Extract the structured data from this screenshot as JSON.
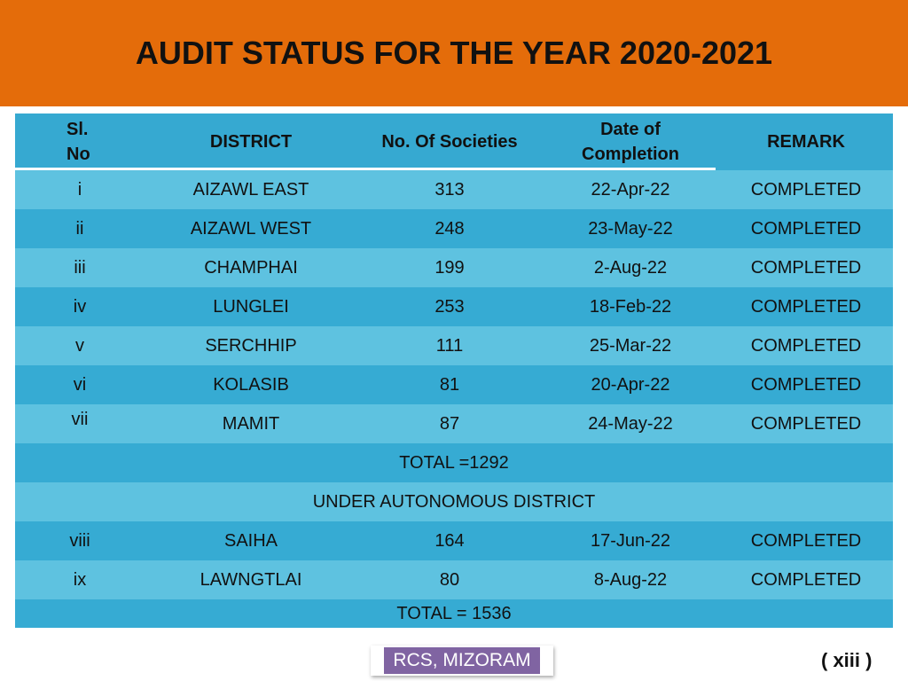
{
  "title": "AUDIT STATUS FOR THE YEAR 2020-2021",
  "colors": {
    "header_bg": "#e46c0a",
    "table_dark": "#36abd3",
    "table_light": "#5ec2e0",
    "badge_bg": "#8064a2"
  },
  "table": {
    "headers": {
      "sl_line1": "Sl.",
      "sl_line2": "No",
      "district": "DISTRICT",
      "societies": "No. Of  Societies",
      "date_line1": "Date of",
      "date_line2": "Completion",
      "remark": "REMARK"
    },
    "rows": [
      {
        "sl": "i",
        "district": "AIZAWL EAST",
        "societies": "313",
        "date": "22-Apr-22",
        "remark": "COMPLETED"
      },
      {
        "sl": "ii",
        "district": "AIZAWL WEST",
        "societies": "248",
        "date": "23-May-22",
        "remark": "COMPLETED"
      },
      {
        "sl": "iii",
        "district": "CHAMPHAI",
        "societies": "199",
        "date": "2-Aug-22",
        "remark": "COMPLETED"
      },
      {
        "sl": "iv",
        "district": "LUNGLEI",
        "societies": "253",
        "date": "18-Feb-22",
        "remark": "COMPLETED"
      },
      {
        "sl": "v",
        "district": "SERCHHIP",
        "societies": "111",
        "date": "25-Mar-22",
        "remark": "COMPLETED"
      },
      {
        "sl": "vi",
        "district": "KOLASIB",
        "societies": "81",
        "date": "20-Apr-22",
        "remark": "COMPLETED"
      },
      {
        "sl": "vii",
        "district": "MAMIT",
        "societies": "87",
        "date": "24-May-22",
        "remark": "COMPLETED"
      }
    ],
    "subtotal": "TOTAL =1292",
    "section_label": "UNDER AUTONOMOUS DISTRICT",
    "autonomous_rows": [
      {
        "sl": "viii",
        "district": "SAIHA",
        "societies": "164",
        "date": "17-Jun-22",
        "remark": "COMPLETED"
      },
      {
        "sl": "ix",
        "district": "LAWNGTLAI",
        "societies": "80",
        "date": "8-Aug-22",
        "remark": "COMPLETED"
      }
    ],
    "grand_total": "TOTAL = 1536"
  },
  "footer": {
    "badge": "RCS, MIZORAM",
    "page_number": "( xiii )"
  }
}
